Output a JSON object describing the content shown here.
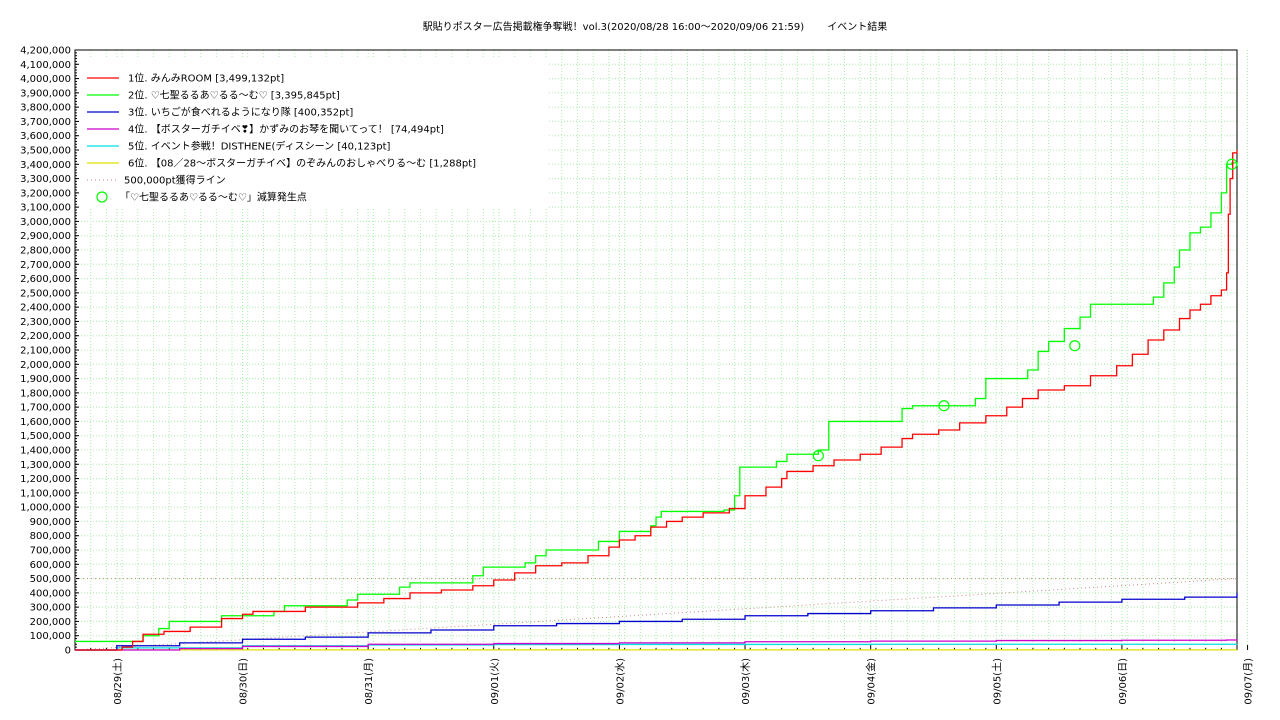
{
  "chart_data": {
    "type": "line",
    "title": "駅貼りポスター広告掲載権争奪戦！vol.3(2020/08/28 16:00〜2020/09/06 21:59)　　 イベント結果",
    "xlabel": "",
    "ylabel": "",
    "x_start": "2020-08-28 16:00",
    "x_end": "2020-09-06 21:59",
    "ylim": [
      0,
      4200000
    ],
    "y_ticks": [
      0,
      100000,
      200000,
      300000,
      400000,
      500000,
      600000,
      700000,
      800000,
      900000,
      1000000,
      1100000,
      1200000,
      1300000,
      1400000,
      1500000,
      1600000,
      1700000,
      1800000,
      1900000,
      2000000,
      2100000,
      2200000,
      2300000,
      2400000,
      2500000,
      2600000,
      2700000,
      2800000,
      2900000,
      3000000,
      3100000,
      3200000,
      3300000,
      3400000,
      3500000,
      3600000,
      3700000,
      3800000,
      3900000,
      4000000,
      4100000,
      4200000
    ],
    "y_tick_labels": [
      "0",
      "100,000",
      "200,000",
      "300,000",
      "400,000",
      "500,000",
      "600,000",
      "700,000",
      "800,000",
      "900,000",
      "1,000,000",
      "1,100,000",
      "1,200,000",
      "1,300,000",
      "1,400,000",
      "1,500,000",
      "1,600,000",
      "1,700,000",
      "1,800,000",
      "1,900,000",
      "2,000,000",
      "2,100,000",
      "2,200,000",
      "2,300,000",
      "2,400,000",
      "2,500,000",
      "2,600,000",
      "2,700,000",
      "2,800,000",
      "2,900,000",
      "3,000,000",
      "3,100,000",
      "3,200,000",
      "3,300,000",
      "3,400,000",
      "3,500,000",
      "3,600,000",
      "3,700,000",
      "3,800,000",
      "3,900,000",
      "4,000,000",
      "4,100,000",
      "4,200,000"
    ],
    "x_ticks": [
      "2020-08-29",
      "2020-08-30",
      "2020-08-31",
      "2020-09-01",
      "2020-09-02",
      "2020-09-03",
      "2020-09-04",
      "2020-09-05",
      "2020-09-06",
      "2020-09-07"
    ],
    "x_tick_labels": [
      "08/29(土)",
      "08/30(日)",
      "08/31(月)",
      "09/01(火)",
      "09/02(水)",
      "09/03(木)",
      "09/04(金)",
      "09/05(土)",
      "09/06(日)",
      "09/07(月)"
    ],
    "grid": true,
    "legend_position": "top-left",
    "series": [
      {
        "name": "1位. みんみROOM [3,499,132pt]",
        "color": "#ff0000",
        "points": [
          [
            "2020-08-28 16:00",
            0
          ],
          [
            "2020-08-29 01:00",
            20000
          ],
          [
            "2020-08-29 03:00",
            60000
          ],
          [
            "2020-08-29 05:00",
            110000
          ],
          [
            "2020-08-29 09:00",
            130000
          ],
          [
            "2020-08-29 14:00",
            160000
          ],
          [
            "2020-08-29 20:00",
            220000
          ],
          [
            "2020-08-30 00:00",
            250000
          ],
          [
            "2020-08-30 02:00",
            270000
          ],
          [
            "2020-08-30 12:00",
            300000
          ],
          [
            "2020-08-30 22:00",
            330000
          ],
          [
            "2020-08-31 03:00",
            360000
          ],
          [
            "2020-08-31 08:00",
            400000
          ],
          [
            "2020-08-31 14:00",
            420000
          ],
          [
            "2020-08-31 20:00",
            450000
          ],
          [
            "2020-09-01 00:00",
            490000
          ],
          [
            "2020-09-01 04:00",
            540000
          ],
          [
            "2020-09-01 08:00",
            590000
          ],
          [
            "2020-09-01 13:00",
            610000
          ],
          [
            "2020-09-01 18:00",
            660000
          ],
          [
            "2020-09-01 22:00",
            720000
          ],
          [
            "2020-09-02 00:00",
            770000
          ],
          [
            "2020-09-02 03:00",
            800000
          ],
          [
            "2020-09-02 06:00",
            860000
          ],
          [
            "2020-09-02 09:00",
            900000
          ],
          [
            "2020-09-02 12:00",
            930000
          ],
          [
            "2020-09-02 16:00",
            960000
          ],
          [
            "2020-09-02 21:00",
            990000
          ],
          [
            "2020-09-03 00:00",
            1080000
          ],
          [
            "2020-09-03 04:00",
            1140000
          ],
          [
            "2020-09-03 07:00",
            1200000
          ],
          [
            "2020-09-03 08:00",
            1250000
          ],
          [
            "2020-09-03 13:00",
            1290000
          ],
          [
            "2020-09-03 17:00",
            1330000
          ],
          [
            "2020-09-03 22:00",
            1370000
          ],
          [
            "2020-09-04 02:00",
            1420000
          ],
          [
            "2020-09-04 06:00",
            1480000
          ],
          [
            "2020-09-04 08:00",
            1510000
          ],
          [
            "2020-09-04 13:00",
            1540000
          ],
          [
            "2020-09-04 17:00",
            1590000
          ],
          [
            "2020-09-04 22:00",
            1640000
          ],
          [
            "2020-09-05 02:00",
            1700000
          ],
          [
            "2020-09-05 05:00",
            1760000
          ],
          [
            "2020-09-05 08:00",
            1820000
          ],
          [
            "2020-09-05 13:00",
            1850000
          ],
          [
            "2020-09-05 18:00",
            1920000
          ],
          [
            "2020-09-05 23:00",
            1990000
          ],
          [
            "2020-09-06 02:00",
            2070000
          ],
          [
            "2020-09-06 05:00",
            2170000
          ],
          [
            "2020-09-06 08:00",
            2240000
          ],
          [
            "2020-09-06 11:00",
            2320000
          ],
          [
            "2020-09-06 13:00",
            2380000
          ],
          [
            "2020-09-06 15:00",
            2420000
          ],
          [
            "2020-09-06 17:00",
            2480000
          ],
          [
            "2020-09-06 19:00",
            2520000
          ],
          [
            "2020-09-06 20:00",
            2640000
          ],
          [
            "2020-09-06 20:20",
            3050000
          ],
          [
            "2020-09-06 20:40",
            3300000
          ],
          [
            "2020-09-06 21:10",
            3480000
          ],
          [
            "2020-09-06 21:59",
            3499132
          ]
        ]
      },
      {
        "name": "2位. ♡七聖るるあ♡るる〜む♡ [3,395,845pt]",
        "color": "#00ff00",
        "points": [
          [
            "2020-08-28 16:00",
            60000
          ],
          [
            "2020-08-29 04:00",
            60000
          ],
          [
            "2020-08-29 05:00",
            100000
          ],
          [
            "2020-08-29 08:00",
            150000
          ],
          [
            "2020-08-29 10:00",
            200000
          ],
          [
            "2020-08-29 20:00",
            240000
          ],
          [
            "2020-08-30 06:00",
            270000
          ],
          [
            "2020-08-30 08:00",
            310000
          ],
          [
            "2020-08-30 20:00",
            350000
          ],
          [
            "2020-08-30 22:00",
            390000
          ],
          [
            "2020-08-31 06:00",
            440000
          ],
          [
            "2020-08-31 08:00",
            470000
          ],
          [
            "2020-08-31 20:00",
            520000
          ],
          [
            "2020-08-31 22:00",
            580000
          ],
          [
            "2020-09-01 06:00",
            610000
          ],
          [
            "2020-09-01 08:00",
            660000
          ],
          [
            "2020-09-01 10:00",
            700000
          ],
          [
            "2020-09-01 20:00",
            760000
          ],
          [
            "2020-09-02 00:00",
            830000
          ],
          [
            "2020-09-02 06:00",
            870000
          ],
          [
            "2020-09-02 07:00",
            930000
          ],
          [
            "2020-09-02 08:00",
            970000
          ],
          [
            "2020-09-02 20:00",
            980000
          ],
          [
            "2020-09-02 22:00",
            1080000
          ],
          [
            "2020-09-02 23:00",
            1280000
          ],
          [
            "2020-09-03 06:00",
            1320000
          ],
          [
            "2020-09-03 08:00",
            1370000
          ],
          [
            "2020-09-03 14:00",
            1400000
          ],
          [
            "2020-09-03 16:00",
            1600000
          ],
          [
            "2020-09-04 06:00",
            1690000
          ],
          [
            "2020-09-04 08:00",
            1710000
          ],
          [
            "2020-09-04 20:00",
            1760000
          ],
          [
            "2020-09-04 22:00",
            1900000
          ],
          [
            "2020-09-05 06:00",
            1960000
          ],
          [
            "2020-09-05 08:00",
            2090000
          ],
          [
            "2020-09-05 10:00",
            2160000
          ],
          [
            "2020-09-05 13:00",
            2250000
          ],
          [
            "2020-09-05 16:00",
            2330000
          ],
          [
            "2020-09-05 18:00",
            2420000
          ],
          [
            "2020-09-06 06:00",
            2470000
          ],
          [
            "2020-09-06 08:00",
            2570000
          ],
          [
            "2020-09-06 10:00",
            2680000
          ],
          [
            "2020-09-06 11:00",
            2800000
          ],
          [
            "2020-09-06 13:00",
            2920000
          ],
          [
            "2020-09-06 15:00",
            2960000
          ],
          [
            "2020-09-06 17:00",
            3060000
          ],
          [
            "2020-09-06 19:00",
            3200000
          ],
          [
            "2020-09-06 20:00",
            3400000
          ],
          [
            "2020-09-06 21:00",
            3410000
          ],
          [
            "2020-09-06 21:59",
            3395845
          ]
        ]
      },
      {
        "name": "3位. いちごが食べれるようになり隊 [400,352pt]",
        "color": "#0000cc",
        "points": [
          [
            "2020-08-28 16:00",
            0
          ],
          [
            "2020-08-29 00:00",
            30000
          ],
          [
            "2020-08-29 12:00",
            50000
          ],
          [
            "2020-08-30 00:00",
            75000
          ],
          [
            "2020-08-30 12:00",
            90000
          ],
          [
            "2020-08-31 00:00",
            120000
          ],
          [
            "2020-08-31 12:00",
            140000
          ],
          [
            "2020-09-01 00:00",
            170000
          ],
          [
            "2020-09-01 12:00",
            185000
          ],
          [
            "2020-09-02 00:00",
            200000
          ],
          [
            "2020-09-02 12:00",
            215000
          ],
          [
            "2020-09-03 00:00",
            240000
          ],
          [
            "2020-09-03 12:00",
            255000
          ],
          [
            "2020-09-04 00:00",
            275000
          ],
          [
            "2020-09-04 12:00",
            295000
          ],
          [
            "2020-09-05 00:00",
            315000
          ],
          [
            "2020-09-05 12:00",
            335000
          ],
          [
            "2020-09-06 00:00",
            355000
          ],
          [
            "2020-09-06 12:00",
            370000
          ],
          [
            "2020-09-06 21:59",
            400352
          ]
        ]
      },
      {
        "name": "4位. 【ボスターガチイベ❣】かずみのお琴を聞いてって！ [74,494pt]",
        "color": "#cc00cc",
        "points": [
          [
            "2020-08-28 16:00",
            0
          ],
          [
            "2020-08-29 12:00",
            10000
          ],
          [
            "2020-08-30 00:00",
            25000
          ],
          [
            "2020-08-31 00:00",
            40000
          ],
          [
            "2020-09-01 00:00",
            45000
          ],
          [
            "2020-09-02 00:00",
            50000
          ],
          [
            "2020-09-03 00:00",
            58000
          ],
          [
            "2020-09-04 00:00",
            62000
          ],
          [
            "2020-09-05 00:00",
            66000
          ],
          [
            "2020-09-06 00:00",
            68000
          ],
          [
            "2020-09-06 20:00",
            70000
          ],
          [
            "2020-09-06 21:59",
            74494
          ]
        ]
      },
      {
        "name": "5位. イベント参戦！DISTHENE(ディスシーン [40,123pt]",
        "color": "#00e0e0",
        "points": [
          [
            "2020-08-28 16:00",
            0
          ],
          [
            "2020-08-29 00:00",
            15000
          ],
          [
            "2020-08-30 00:00",
            30000
          ],
          [
            "2020-08-31 00:00",
            35000
          ],
          [
            "2020-09-01 00:00",
            38000
          ],
          [
            "2020-09-02 00:00",
            39000
          ],
          [
            "2020-09-04 00:00",
            40000
          ],
          [
            "2020-09-06 21:59",
            40123
          ]
        ]
      },
      {
        "name": "6位. 【08／28〜ボスターガチイベ】のぞみんのおしゃべりる〜む [1,288pt]",
        "color": "#e0e000",
        "points": [
          [
            "2020-08-28 16:00",
            0
          ],
          [
            "2020-08-29 00:00",
            1000
          ],
          [
            "2020-09-06 21:59",
            1288
          ]
        ]
      }
    ],
    "reference_line": {
      "name": "500,000pt獲得ライン",
      "color": "#cc8888",
      "points": [
        [
          "2020-08-28 16:00",
          0
        ],
        [
          "2020-09-06 21:59",
          500000
        ]
      ],
      "horizontal_value": 500000
    },
    "markers": {
      "name": "「♡七聖るるあ♡るる〜む♡」減算発生点",
      "color": "#00ff00",
      "points": [
        [
          "2020-09-03 14:00",
          1360000
        ],
        [
          "2020-09-04 14:00",
          1710000
        ],
        [
          "2020-09-05 15:00",
          2130000
        ],
        [
          "2020-09-06 21:00",
          3400000
        ]
      ]
    }
  }
}
